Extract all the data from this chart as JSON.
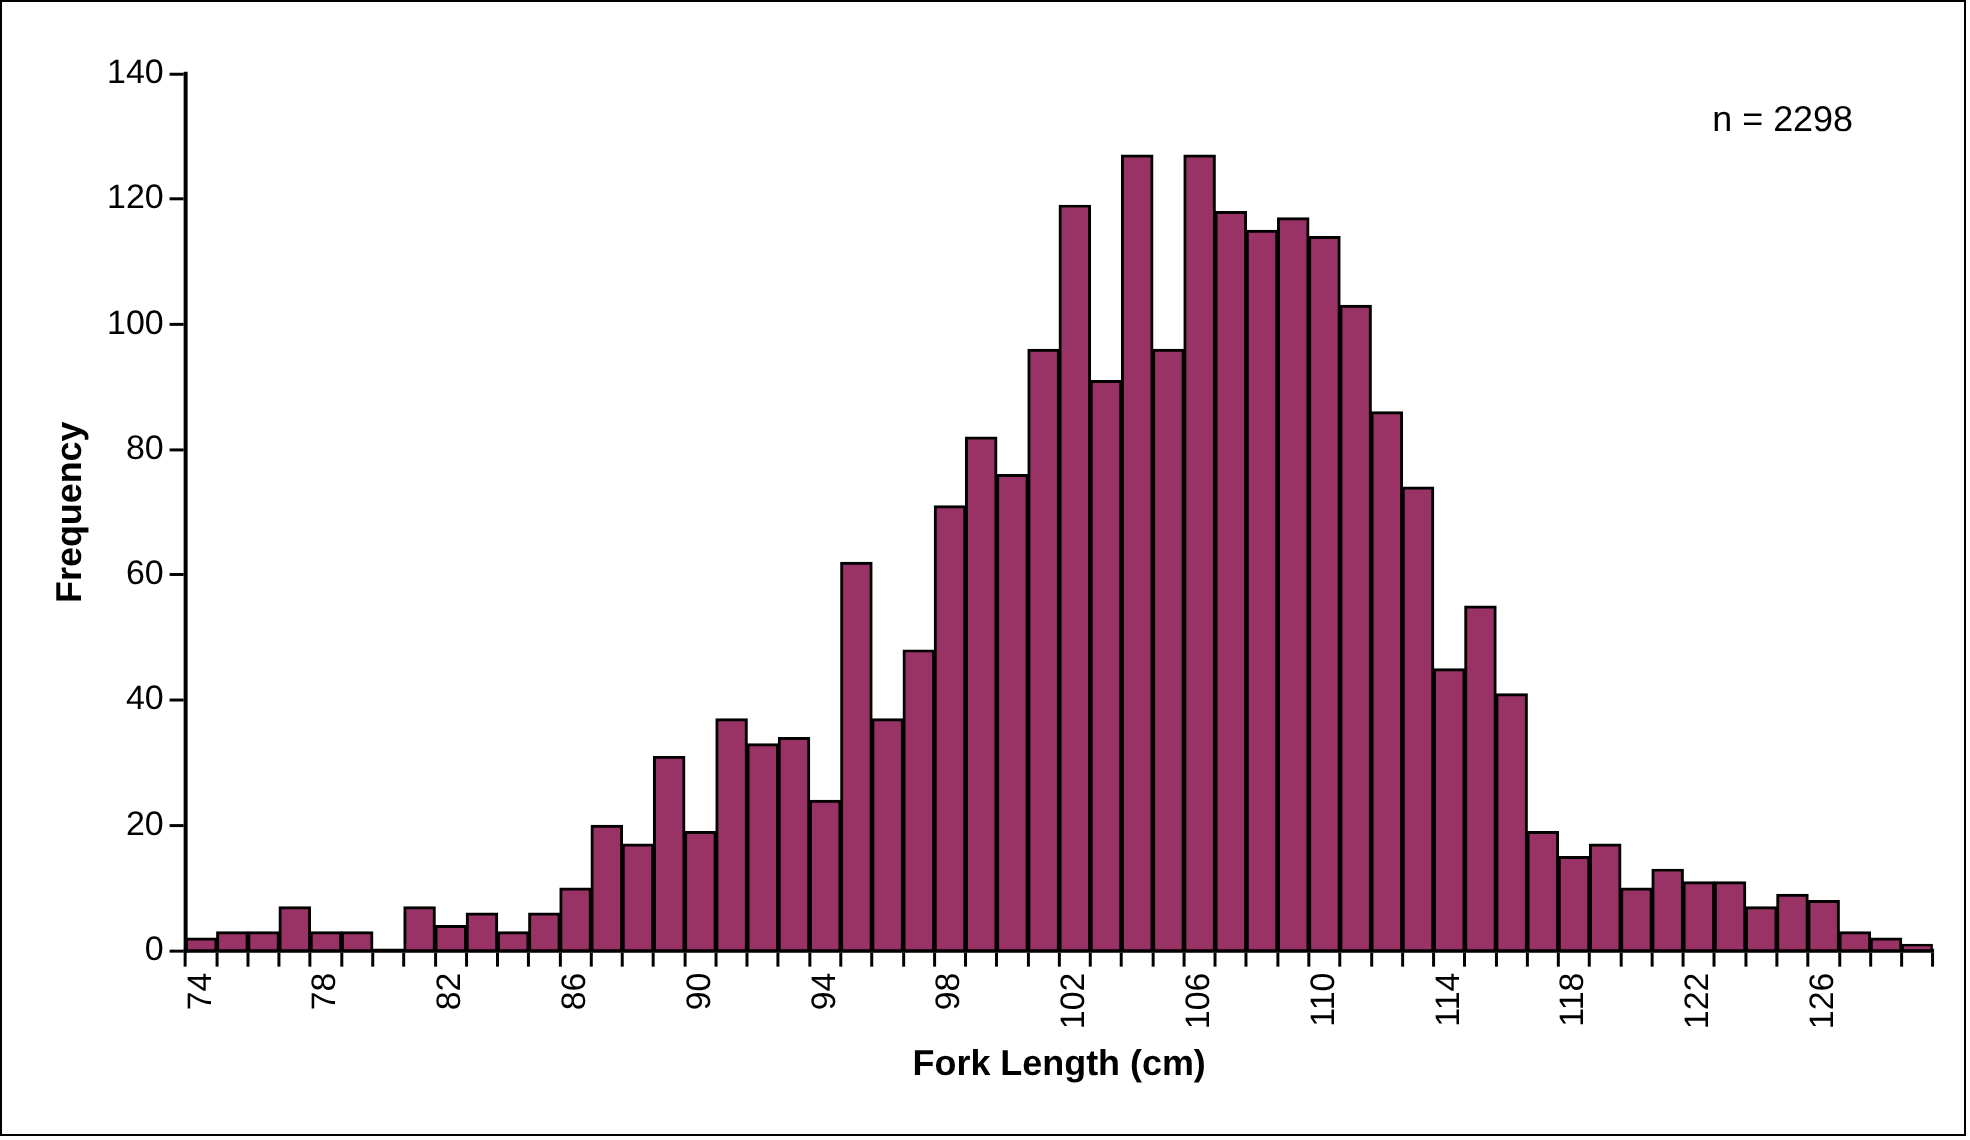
{
  "chart_data": {
    "type": "bar",
    "xlabel": "Fork Length (cm)",
    "ylabel": "Frequency",
    "annotations": [
      "n = 2298"
    ],
    "categories": [
      "74",
      null,
      null,
      null,
      "78",
      null,
      null,
      null,
      "82",
      null,
      null,
      null,
      "86",
      null,
      null,
      null,
      "90",
      null,
      null,
      null,
      "94",
      null,
      null,
      null,
      "98",
      null,
      null,
      null,
      "102",
      null,
      null,
      null,
      "106",
      null,
      null,
      null,
      "110",
      null,
      null,
      null,
      "114",
      null,
      null,
      null,
      "118",
      null,
      null,
      null,
      "122",
      null,
      null,
      null,
      "126",
      null,
      null,
      null
    ],
    "values": [
      2,
      3,
      3,
      7,
      3,
      3,
      0,
      7,
      4,
      6,
      3,
      6,
      10,
      20,
      17,
      31,
      19,
      37,
      33,
      34,
      24,
      62,
      37,
      48,
      71,
      82,
      76,
      96,
      119,
      91,
      127,
      96,
      127,
      118,
      115,
      117,
      114,
      103,
      86,
      74,
      45,
      55,
      41,
      19,
      15,
      17,
      10,
      13,
      11,
      11,
      7,
      9,
      8,
      3,
      2,
      1
    ],
    "color": "#993366",
    "ylim": [
      0,
      140
    ],
    "yticks": [
      0,
      20,
      40,
      60,
      80,
      100,
      120,
      140
    ],
    "grid": false,
    "legend": false
  }
}
